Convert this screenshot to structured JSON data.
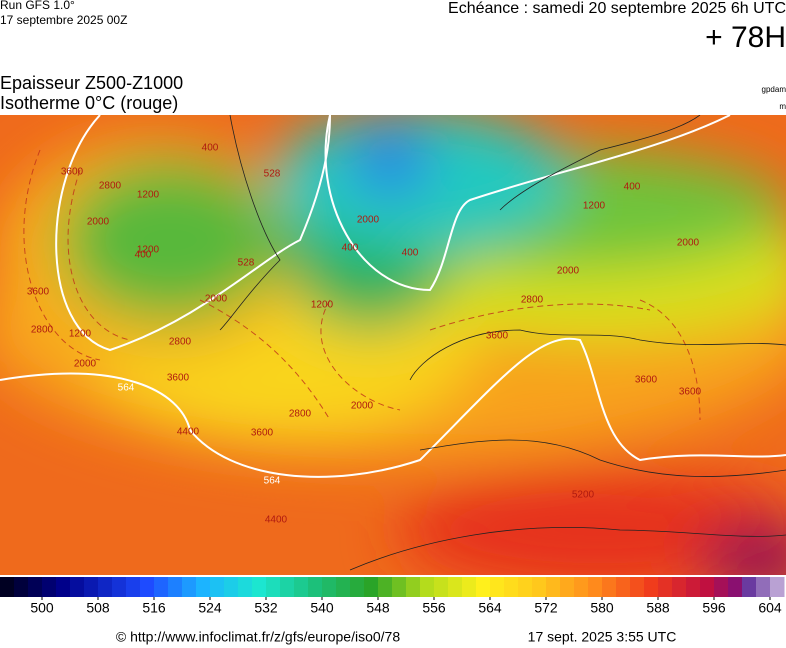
{
  "header": {
    "run": "Run GFS 1.0°",
    "date": "17 septembre 2025 00Z",
    "echeance": "Echéance : samedi 20 septembre 2025 6h UTC",
    "lead": "+ 78H"
  },
  "title": {
    "line1": "Epaisseur Z500-Z1000",
    "line2": "Isotherme 0°C (rouge)",
    "unit1": "gpdam",
    "unit2": "m"
  },
  "map": {
    "contour_labels": [
      "3600",
      "2800",
      "2000",
      "1200",
      "400",
      "1200",
      "400",
      "3600",
      "2800",
      "2000",
      "1200",
      "400",
      "400",
      "528",
      "528",
      "400",
      "1200",
      "2000",
      "2000",
      "2800",
      "3600",
      "2000",
      "2800",
      "1200",
      "564",
      "3600",
      "2800",
      "3600",
      "4400",
      "564",
      "4400",
      "3600",
      "2000",
      "3600",
      "5200",
      "2000"
    ]
  },
  "colorbar": {
    "labels": [
      500,
      508,
      516,
      524,
      532,
      540,
      548,
      556,
      564,
      572,
      580,
      588,
      596,
      604
    ]
  },
  "footer": {
    "source": "© http://www.infoclimat.fr/z/gfs/europe/iso0/78",
    "time": "17 sept. 2025  3:55 UTC"
  }
}
